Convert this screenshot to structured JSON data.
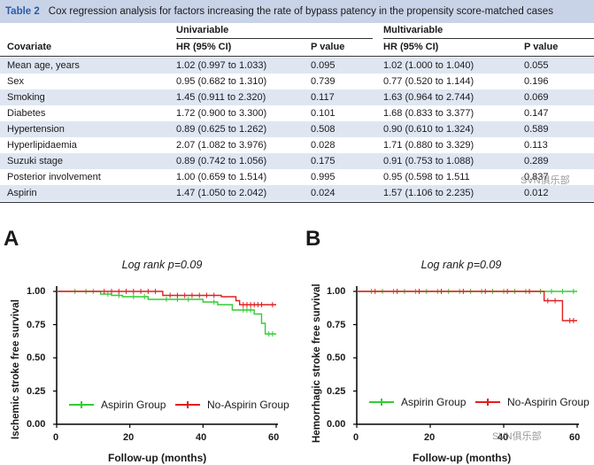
{
  "table": {
    "number": "Table 2",
    "title": "Cox regression analysis for factors increasing the rate of bypass patency in the propensity score-matched cases",
    "group_univariable": "Univariable",
    "group_multivariable": "Multivariable",
    "headers": [
      "Covariate",
      "HR (95% CI)",
      "P value",
      "HR (95% CI)",
      "P value"
    ],
    "rows": [
      [
        "Mean age, years",
        "1.02 (0.997 to 1.033)",
        "0.095",
        "1.02 (1.000 to 1.040)",
        "0.055"
      ],
      [
        "Sex",
        "0.95 (0.682 to 1.310)",
        "0.739",
        "0.77 (0.520 to 1.144)",
        "0.196"
      ],
      [
        "Smoking",
        "1.45 (0.911 to 2.320)",
        "0.117",
        "1.63 (0.964 to 2.744)",
        "0.069"
      ],
      [
        "Diabetes",
        "1.72 (0.900 to 3.300)",
        "0.101",
        "1.68 (0.833 to 3.377)",
        "0.147"
      ],
      [
        "Hypertension",
        "0.89 (0.625 to 1.262)",
        "0.508",
        "0.90 (0.610 to 1.324)",
        "0.589"
      ],
      [
        "Hyperlipidaemia",
        "2.07 (1.082 to 3.976)",
        "0.028",
        "1.71 (0.880 to 3.329)",
        "0.113"
      ],
      [
        "Suzuki stage",
        "0.89 (0.742 to 1.056)",
        "0.175",
        "0.91 (0.753 to 1.088)",
        "0.289"
      ],
      [
        "Posterior involvement",
        "1.00 (0.659 to 1.514)",
        "0.995",
        "0.95 (0.598 to 1.511",
        "0.837"
      ],
      [
        "Aspirin",
        "1.47 (1.050 to 2.042)",
        "0.024",
        "1.57 (1.106 to 2.235)",
        "0.012"
      ]
    ]
  },
  "watermark_text": "SVN俱乐部",
  "colors": {
    "aspirin": "#33cc33",
    "no_aspirin": "#e02020",
    "caption_bg": "#c9d3e8",
    "row_alt": "#dfe6f2"
  },
  "chart_data": [
    {
      "type": "line",
      "panel": "A",
      "title": "Log rank p=0.09",
      "xlabel": "Follow-up (months)",
      "ylabel": "Ischemic stroke free survival",
      "xlim": [
        0,
        60
      ],
      "ylim": [
        0,
        1
      ],
      "xticks": [
        "0",
        "20",
        "40",
        "60"
      ],
      "yticks": [
        "0.00",
        "0.25",
        "0.50",
        "0.75",
        "1.00"
      ],
      "legend": [
        "Aspirin Group",
        "No-Aspirin Group"
      ],
      "series": [
        {
          "name": "Aspirin Group",
          "steps": [
            [
              0,
              1.0
            ],
            [
              12,
              0.98
            ],
            [
              15,
              0.97
            ],
            [
              18,
              0.96
            ],
            [
              25,
              0.94
            ],
            [
              40,
              0.92
            ],
            [
              44,
              0.9
            ],
            [
              48,
              0.86
            ],
            [
              54,
              0.83
            ],
            [
              56,
              0.76
            ],
            [
              57,
              0.68
            ],
            [
              60,
              0.68
            ]
          ],
          "censor": [
            5,
            8,
            10,
            14,
            17,
            21,
            24,
            30,
            33,
            36,
            43,
            51,
            52,
            53,
            58,
            59
          ]
        },
        {
          "name": "No-Aspirin Group",
          "steps": [
            [
              0,
              1.0
            ],
            [
              12,
              1.0
            ],
            [
              29,
              0.97
            ],
            [
              45,
              0.96
            ],
            [
              49,
              0.93
            ],
            [
              50,
              0.9
            ],
            [
              60,
              0.9
            ]
          ],
          "censor": [
            13,
            15,
            17,
            19,
            21,
            23,
            25,
            27,
            31,
            33,
            35,
            37,
            39,
            41,
            43,
            51,
            52,
            53,
            54,
            55,
            56,
            59
          ]
        }
      ]
    },
    {
      "type": "line",
      "panel": "B",
      "title": "Log rank p=0.09",
      "xlabel": "Follow-up (months)",
      "ylabel": "Hemorrhagic stroke free survival",
      "xlim": [
        0,
        60
      ],
      "ylim": [
        0,
        1
      ],
      "xticks": [
        "0",
        "20",
        "40",
        "60"
      ],
      "yticks": [
        "0.00",
        "0.25",
        "0.50",
        "0.75",
        "1.00"
      ],
      "legend": [
        "Aspirin Group",
        "No-Aspirin Group"
      ],
      "series": [
        {
          "name": "Aspirin Group",
          "steps": [
            [
              0,
              1.0
            ],
            [
              60,
              1.0
            ]
          ],
          "censor": [
            4,
            7,
            10,
            13,
            16,
            19,
            22,
            25,
            28,
            31,
            34,
            37,
            40,
            43,
            46,
            50,
            53,
            56,
            59
          ]
        },
        {
          "name": "No-Aspirin Group",
          "steps": [
            [
              0,
              1.0
            ],
            [
              50,
              1.0
            ],
            [
              51,
              0.93
            ],
            [
              55,
              0.93
            ],
            [
              56,
              0.78
            ],
            [
              60,
              0.78
            ]
          ],
          "censor": [
            5,
            11,
            17,
            23,
            29,
            35,
            41,
            47,
            52,
            54,
            58,
            59
          ]
        }
      ]
    }
  ]
}
